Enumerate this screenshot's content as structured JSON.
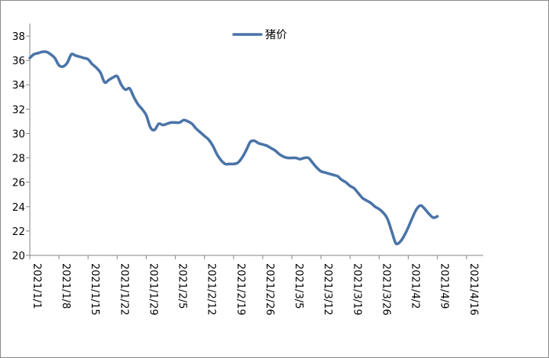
{
  "chart_data": {
    "type": "line",
    "legend": {
      "position": "top-center"
    },
    "grid": false,
    "ylim": [
      20,
      38
    ],
    "yticks": [
      20,
      22,
      24,
      26,
      28,
      30,
      32,
      34,
      36,
      38
    ],
    "xticks": [
      "2021/1/1",
      "2021/1/8",
      "2021/1/15",
      "2021/1/22",
      "2021/1/29",
      "2021/2/5",
      "2021/2/12",
      "2021/2/19",
      "2021/2/26",
      "2021/3/5",
      "2021/3/12",
      "2021/3/19",
      "2021/3/26",
      "2021/4/2",
      "2021/4/9",
      "2021/4/16"
    ],
    "xlim": [
      "2021/1/1",
      "2021/4/20"
    ],
    "series": [
      {
        "name": "猪价",
        "color": "#4a74a8",
        "points": [
          [
            "2021/1/1",
            36.2
          ],
          [
            "2021/1/2",
            36.5
          ],
          [
            "2021/1/3",
            36.6
          ],
          [
            "2021/1/4",
            36.7
          ],
          [
            "2021/1/5",
            36.7
          ],
          [
            "2021/1/6",
            36.5
          ],
          [
            "2021/1/7",
            36.2
          ],
          [
            "2021/1/8",
            35.6
          ],
          [
            "2021/1/9",
            35.5
          ],
          [
            "2021/1/10",
            35.8
          ],
          [
            "2021/1/11",
            36.5
          ],
          [
            "2021/1/12",
            36.4
          ],
          [
            "2021/1/13",
            36.3
          ],
          [
            "2021/1/14",
            36.2
          ],
          [
            "2021/1/15",
            36.1
          ],
          [
            "2021/1/16",
            35.7
          ],
          [
            "2021/1/17",
            35.4
          ],
          [
            "2021/1/18",
            35.0
          ],
          [
            "2021/1/19",
            34.2
          ],
          [
            "2021/1/20",
            34.4
          ],
          [
            "2021/1/21",
            34.6
          ],
          [
            "2021/1/22",
            34.7
          ],
          [
            "2021/1/23",
            34.0
          ],
          [
            "2021/1/24",
            33.6
          ],
          [
            "2021/1/25",
            33.7
          ],
          [
            "2021/1/26",
            33.0
          ],
          [
            "2021/1/27",
            32.4
          ],
          [
            "2021/1/28",
            32.0
          ],
          [
            "2021/1/29",
            31.5
          ],
          [
            "2021/1/30",
            30.5
          ],
          [
            "2021/1/31",
            30.3
          ],
          [
            "2021/2/1",
            30.8
          ],
          [
            "2021/2/2",
            30.7
          ],
          [
            "2021/2/3",
            30.8
          ],
          [
            "2021/2/4",
            30.9
          ],
          [
            "2021/2/5",
            30.9
          ],
          [
            "2021/2/6",
            30.9
          ],
          [
            "2021/2/7",
            31.1
          ],
          [
            "2021/2/8",
            31.0
          ],
          [
            "2021/2/9",
            30.8
          ],
          [
            "2021/2/10",
            30.4
          ],
          [
            "2021/2/11",
            30.1
          ],
          [
            "2021/2/12",
            29.8
          ],
          [
            "2021/2/13",
            29.5
          ],
          [
            "2021/2/14",
            29.0
          ],
          [
            "2021/2/15",
            28.3
          ],
          [
            "2021/2/16",
            27.8
          ],
          [
            "2021/2/17",
            27.5
          ],
          [
            "2021/2/18",
            27.5
          ],
          [
            "2021/2/19",
            27.5
          ],
          [
            "2021/2/20",
            27.6
          ],
          [
            "2021/2/21",
            28.0
          ],
          [
            "2021/2/22",
            28.6
          ],
          [
            "2021/2/23",
            29.3
          ],
          [
            "2021/2/24",
            29.4
          ],
          [
            "2021/2/25",
            29.2
          ],
          [
            "2021/2/26",
            29.1
          ],
          [
            "2021/2/27",
            29.0
          ],
          [
            "2021/2/28",
            28.8
          ],
          [
            "2021/3/1",
            28.6
          ],
          [
            "2021/3/2",
            28.3
          ],
          [
            "2021/3/3",
            28.1
          ],
          [
            "2021/3/4",
            28.0
          ],
          [
            "2021/3/5",
            28.0
          ],
          [
            "2021/3/6",
            28.0
          ],
          [
            "2021/3/7",
            27.9
          ],
          [
            "2021/3/8",
            28.0
          ],
          [
            "2021/3/9",
            28.0
          ],
          [
            "2021/3/10",
            27.6
          ],
          [
            "2021/3/11",
            27.2
          ],
          [
            "2021/3/12",
            26.9
          ],
          [
            "2021/3/13",
            26.8
          ],
          [
            "2021/3/14",
            26.7
          ],
          [
            "2021/3/15",
            26.6
          ],
          [
            "2021/3/16",
            26.5
          ],
          [
            "2021/3/17",
            26.2
          ],
          [
            "2021/3/18",
            26.0
          ],
          [
            "2021/3/19",
            25.7
          ],
          [
            "2021/3/20",
            25.5
          ],
          [
            "2021/3/21",
            25.1
          ],
          [
            "2021/3/22",
            24.7
          ],
          [
            "2021/3/23",
            24.5
          ],
          [
            "2021/3/24",
            24.3
          ],
          [
            "2021/3/25",
            24.0
          ],
          [
            "2021/3/26",
            23.8
          ],
          [
            "2021/3/27",
            23.5
          ],
          [
            "2021/3/28",
            23.0
          ],
          [
            "2021/3/29",
            22.0
          ],
          [
            "2021/3/30",
            21.0
          ],
          [
            "2021/3/31",
            21.1
          ],
          [
            "2021/4/1",
            21.6
          ],
          [
            "2021/4/2",
            22.3
          ],
          [
            "2021/4/3",
            23.1
          ],
          [
            "2021/4/4",
            23.8
          ],
          [
            "2021/4/5",
            24.1
          ],
          [
            "2021/4/6",
            23.8
          ],
          [
            "2021/4/7",
            23.4
          ],
          [
            "2021/4/8",
            23.1
          ],
          [
            "2021/4/9",
            23.2
          ]
        ]
      }
    ]
  }
}
